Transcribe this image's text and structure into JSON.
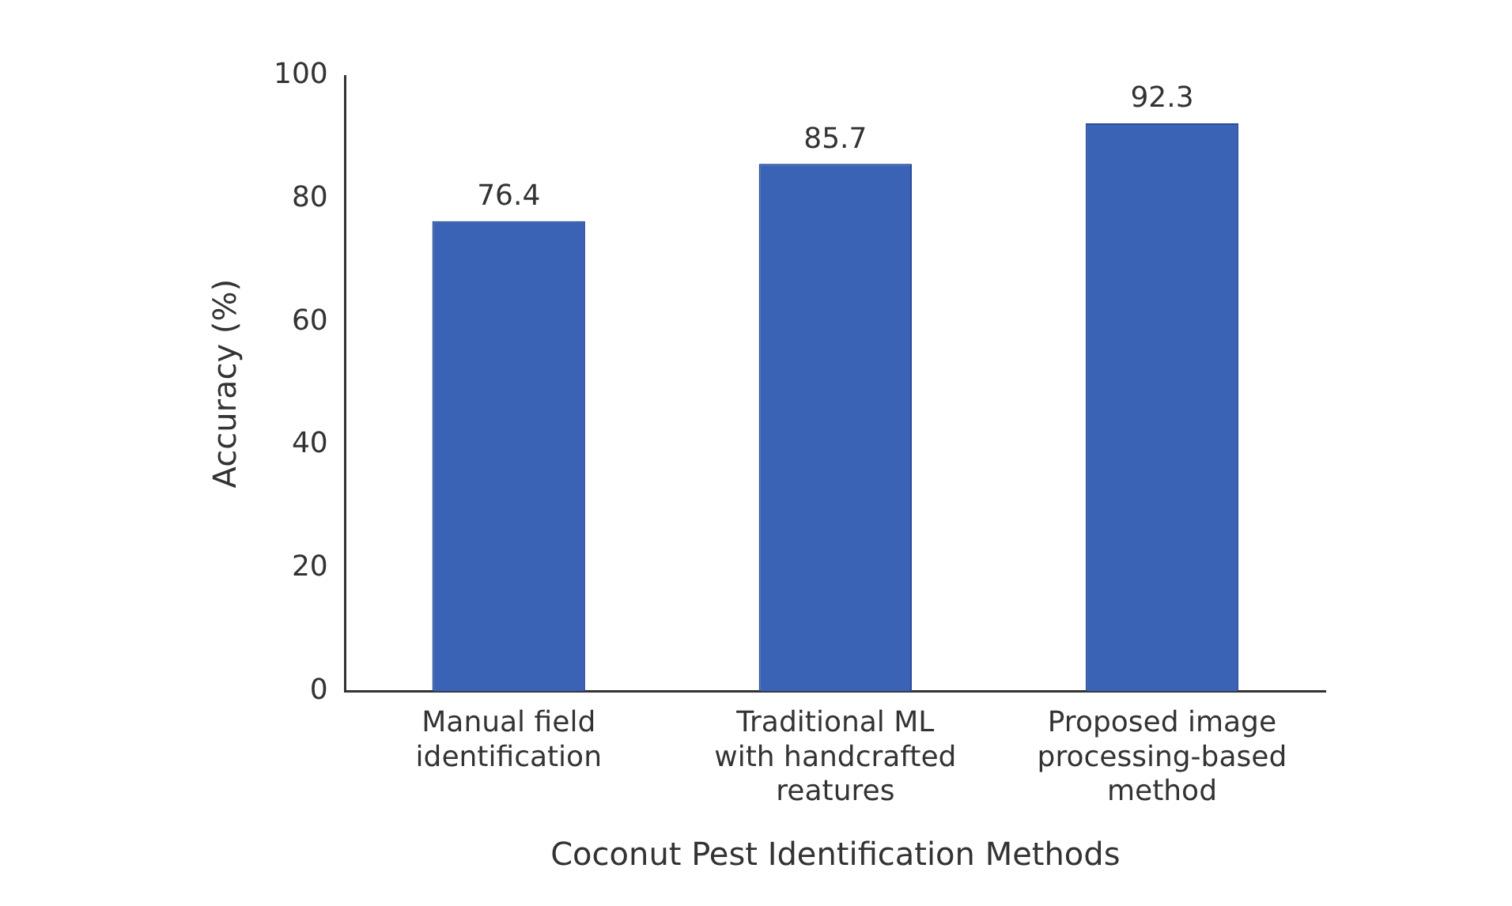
{
  "chart_data": {
    "type": "bar",
    "xlabel": "Coconut Pest Identification Methods",
    "ylabel": "Accuracy (%)",
    "categories": [
      "Manual field identification",
      "Traditional ML with handcrafted reatures",
      "Proposed image processing-based method"
    ],
    "values": [
      76.4,
      85.7,
      92.3
    ],
    "color": "#3a62b5",
    "ylim": [
      0,
      100
    ],
    "yticks": [
      0,
      20,
      40,
      60,
      80,
      100
    ],
    "grid": false,
    "data_labels": true,
    "legend": false
  }
}
